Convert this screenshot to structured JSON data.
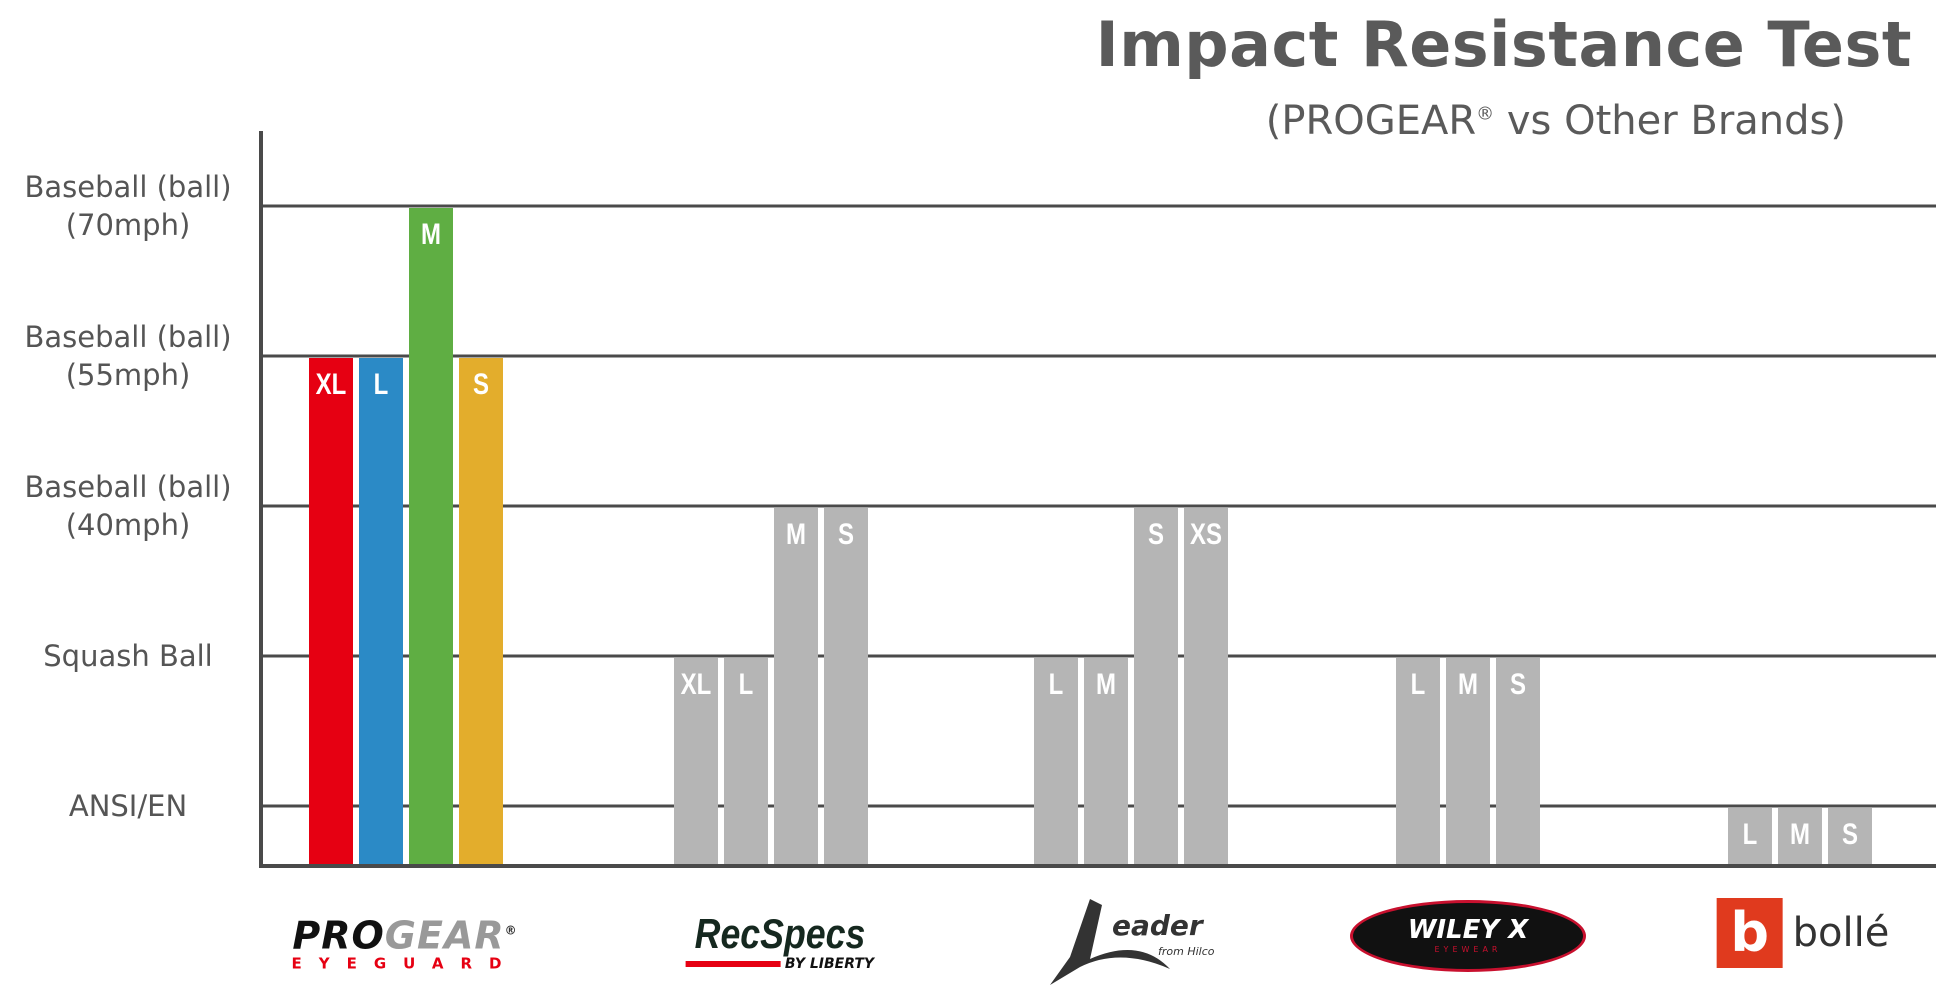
{
  "chart_data": {
    "type": "bar",
    "title": "Impact Resistance Test",
    "subtitle_prefix": "(PROGEAR",
    "subtitle_mark": "®",
    "subtitle_suffix": " vs Other Brands)",
    "y_categories": [
      "ANSI/EN",
      "Squash Ball",
      "Baseball (ball) (40mph)",
      "Baseball (ball) (55mph)",
      "Baseball (ball) (70mph)"
    ],
    "y_tick_labels": [
      [
        "ANSI/EN"
      ],
      [
        "Squash Ball"
      ],
      [
        "Baseball (ball)",
        "(40mph)"
      ],
      [
        "Baseball (ball)",
        "(55mph)"
      ],
      [
        "Baseball (ball)",
        "(70mph)"
      ]
    ],
    "grid": true,
    "groups": [
      {
        "brand": "PROGEAR EYEGUARD",
        "bars": [
          {
            "size": "XL",
            "level": "Baseball (ball) (55mph)",
            "color": "#e60012"
          },
          {
            "size": "L",
            "level": "Baseball (ball) (55mph)",
            "color": "#2b8ac6"
          },
          {
            "size": "M",
            "level": "Baseball (ball) (70mph)",
            "color": "#5fae43"
          },
          {
            "size": "S",
            "level": "Baseball (ball) (55mph)",
            "color": "#e3ad2c"
          }
        ]
      },
      {
        "brand": "RecSpecs by Liberty",
        "bars": [
          {
            "size": "XL",
            "level": "Squash Ball",
            "color": "#b5b5b5"
          },
          {
            "size": "L",
            "level": "Squash Ball",
            "color": "#b5b5b5"
          },
          {
            "size": "M",
            "level": "Baseball (ball) (40mph)",
            "color": "#b5b5b5"
          },
          {
            "size": "S",
            "level": "Baseball (ball) (40mph)",
            "color": "#b5b5b5"
          }
        ]
      },
      {
        "brand": "Leader from Hilco",
        "bars": [
          {
            "size": "L",
            "level": "Squash Ball",
            "color": "#b5b5b5"
          },
          {
            "size": "M",
            "level": "Squash Ball",
            "color": "#b5b5b5"
          },
          {
            "size": "S",
            "level": "Baseball (ball) (40mph)",
            "color": "#b5b5b5"
          },
          {
            "size": "XS",
            "level": "Baseball (ball) (40mph)",
            "color": "#b5b5b5"
          }
        ]
      },
      {
        "brand": "Wiley X Eyewear",
        "bars": [
          {
            "size": "L",
            "level": "Squash Ball",
            "color": "#b5b5b5"
          },
          {
            "size": "M",
            "level": "Squash Ball",
            "color": "#b5b5b5"
          },
          {
            "size": "S",
            "level": "Squash Ball",
            "color": "#b5b5b5"
          }
        ]
      },
      {
        "brand": "bollé",
        "bars": [
          {
            "size": "L",
            "level": "ANSI/EN",
            "color": "#b5b5b5"
          },
          {
            "size": "M",
            "level": "ANSI/EN",
            "color": "#b5b5b5"
          },
          {
            "size": "S",
            "level": "ANSI/EN",
            "color": "#b5b5b5"
          }
        ]
      }
    ]
  },
  "logos": {
    "progear": {
      "word1": "PRO",
      "word2": "GEAR",
      "mark": "®",
      "tagline": "EYEGUARD"
    },
    "recspecs": {
      "word": "RecSpecs",
      "tagline": "BY LIBERTY"
    },
    "leader": {
      "word": "eader",
      "tagline": "from Hilco"
    },
    "wileyx": {
      "word": "WILEY X",
      "tagline": "EYEWEAR"
    },
    "bolle": {
      "word": "bollé"
    }
  }
}
